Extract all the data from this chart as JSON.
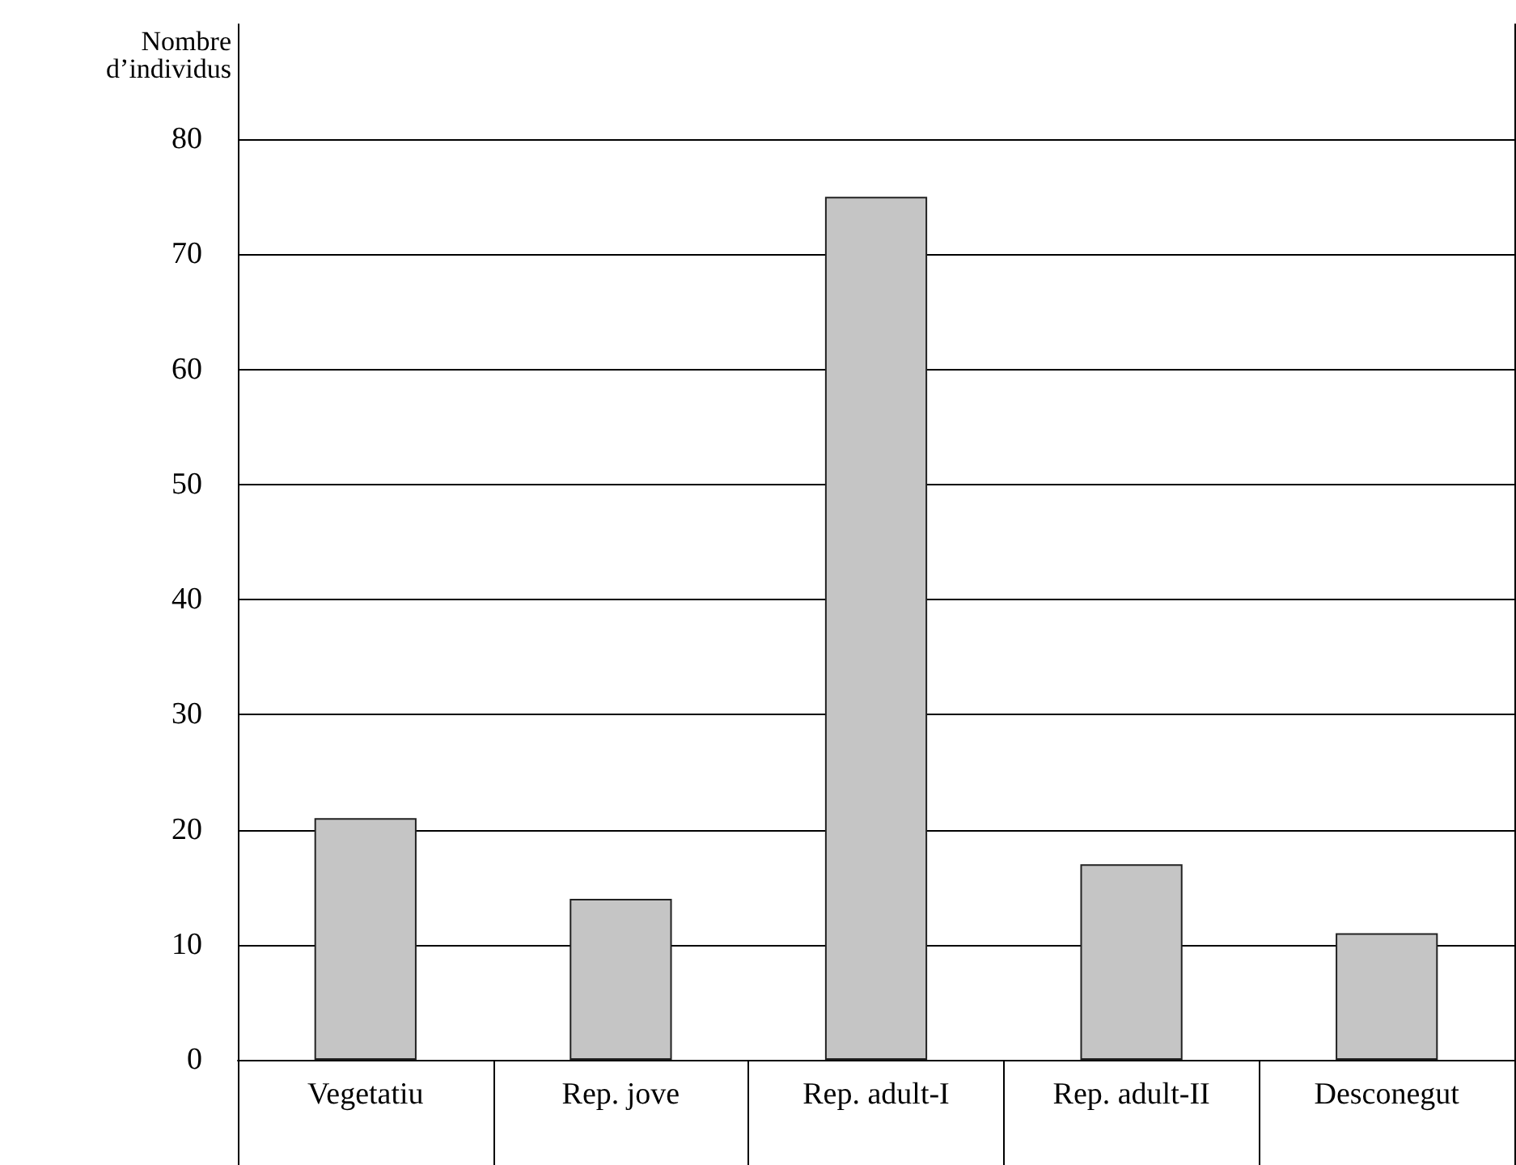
{
  "chart_data": {
    "type": "bar",
    "ylabel": "Nombre\nd’individus",
    "categories": [
      "Vegetatiu",
      "Rep. jove",
      "Rep. adult-I",
      "Rep. adult-II",
      "Desconegut"
    ],
    "values": [
      21,
      14,
      75,
      17,
      11
    ],
    "color": "#c5c5c5",
    "ylim": [
      0,
      90
    ],
    "yticks": [
      0,
      10,
      20,
      30,
      40,
      50,
      60,
      70,
      80
    ],
    "grid": "y"
  }
}
